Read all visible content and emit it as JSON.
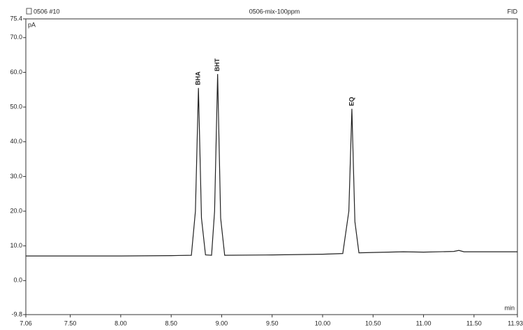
{
  "chart_data": {
    "type": "line",
    "title": "0506-mix-100ppm",
    "run_label": "0506 #10",
    "detector": "FID",
    "ylabel": "pA",
    "xlabel": "min",
    "color": "#222222",
    "x": [
      7.06,
      7.5,
      8.0,
      8.5,
      8.7,
      8.74,
      8.77,
      8.8,
      8.84,
      8.9,
      8.93,
      8.96,
      8.99,
      9.03,
      9.5,
      10.0,
      10.2,
      10.26,
      10.29,
      10.32,
      10.36,
      10.5,
      10.8,
      11.0,
      11.3,
      11.35,
      11.4,
      11.6,
      11.93
    ],
    "values": [
      7.1,
      7.1,
      7.1,
      7.2,
      7.3,
      20,
      55.5,
      18,
      7.4,
      7.3,
      20,
      59.5,
      18,
      7.3,
      7.4,
      7.6,
      7.8,
      20,
      49.5,
      17,
      8.0,
      8.1,
      8.3,
      8.2,
      8.4,
      8.7,
      8.3,
      8.3,
      8.3
    ],
    "annotations": [
      {
        "text": "BHA",
        "x": 8.77,
        "y": 55.5
      },
      {
        "text": "BHT",
        "x": 8.96,
        "y": 59.5
      },
      {
        "text": "EQ",
        "x": 10.29,
        "y": 49.5
      }
    ],
    "xlim": [
      7.06,
      11.93
    ],
    "ylim": [
      -9.8,
      75.4
    ],
    "xticks": [
      {
        "value": 7.06,
        "label": "7.06"
      },
      {
        "value": 7.5,
        "label": "7.50"
      },
      {
        "value": 8.0,
        "label": "8.00"
      },
      {
        "value": 8.5,
        "label": "8.50"
      },
      {
        "value": 9.0,
        "label": "9.00"
      },
      {
        "value": 9.5,
        "label": "9.50"
      },
      {
        "value": 10.0,
        "label": "10.00"
      },
      {
        "value": 10.5,
        "label": "10.50"
      },
      {
        "value": 11.0,
        "label": "11.00"
      },
      {
        "value": 11.5,
        "label": "11.50"
      },
      {
        "value": 11.93,
        "label": "11.93"
      }
    ],
    "yticks": [
      {
        "value": -9.8,
        "label": "-9.8"
      },
      {
        "value": 0,
        "label": "0.0"
      },
      {
        "value": 10,
        "label": "10.0"
      },
      {
        "value": 20,
        "label": "20.0"
      },
      {
        "value": 30,
        "label": "30.0"
      },
      {
        "value": 40,
        "label": "40.0"
      },
      {
        "value": 50,
        "label": "50.0"
      },
      {
        "value": 60,
        "label": "60.0"
      },
      {
        "value": 70,
        "label": "70.0"
      },
      {
        "value": 75.4,
        "label": "75.4"
      }
    ]
  }
}
